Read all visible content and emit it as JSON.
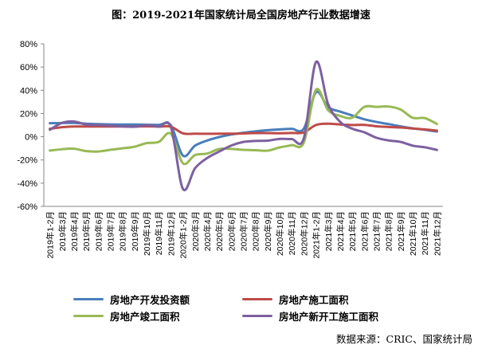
{
  "chart_data": {
    "type": "line",
    "title": "图：2019-2021年国家统计局全国房地产行业数据增速",
    "ylim": [
      -60,
      80
    ],
    "yticks": [
      "80%",
      "60%",
      "40%",
      "20%",
      "0%",
      "-20%",
      "-40%",
      "-60%"
    ],
    "grid": false,
    "legend_position": "bottom",
    "categories": [
      "2019年1-2月",
      "2019年3月",
      "2019年4月",
      "2019年5月",
      "2019年6月",
      "2019年7月",
      "2019年8月",
      "2019年9月",
      "2019年10月",
      "2019年11月",
      "2019年12月",
      "2020年1-2月",
      "2020年3月",
      "2020年4月",
      "2020年5月",
      "2020年6月",
      "2020年7月",
      "2020年8月",
      "2020年9月",
      "2020年10月",
      "2020年11月",
      "2020年12月",
      "2021年1-2月",
      "2021年3月",
      "2021年4月",
      "2021年5月",
      "2021年6月",
      "2021年7月",
      "2021年8月",
      "2021年9月",
      "2021年10月",
      "2021年11月",
      "2021年12月"
    ],
    "series": [
      {
        "name": "房地产开发投资额",
        "color": "#4a7ebb",
        "values": [
          11.6,
          11.8,
          11.9,
          11.2,
          10.9,
          10.6,
          10.5,
          10.5,
          10.3,
          10.2,
          9.9,
          -16.3,
          -7.7,
          -3.3,
          -0.3,
          1.9,
          3.4,
          4.6,
          5.6,
          6.3,
          6.8,
          7.0,
          38.3,
          25.6,
          21.6,
          18.3,
          15.0,
          12.7,
          10.9,
          8.9,
          7.2,
          6.0,
          4.4
        ]
      },
      {
        "name": "房地产施工面积",
        "color": "#be4b48",
        "values": [
          6.8,
          8.2,
          8.8,
          8.8,
          8.8,
          8.8,
          8.8,
          8.7,
          9.0,
          8.7,
          8.7,
          2.9,
          2.6,
          2.5,
          2.6,
          2.6,
          2.8,
          3.1,
          3.1,
          3.0,
          3.2,
          3.7,
          10.1,
          11.2,
          10.5,
          10.1,
          10.2,
          9.0,
          8.4,
          7.9,
          7.1,
          6.3,
          5.2
        ]
      },
      {
        "name": "房地产竣工面积",
        "color": "#98b954",
        "values": [
          -11.9,
          -10.8,
          -10.3,
          -12.4,
          -12.7,
          -11.3,
          -10.0,
          -8.6,
          -5.5,
          -4.5,
          2.6,
          -22.9,
          -15.8,
          -14.5,
          -10.6,
          -10.5,
          -11.3,
          -11.6,
          -12.0,
          -9.2,
          -7.3,
          -4.9,
          40.4,
          22.9,
          17.9,
          16.4,
          25.7,
          25.7,
          26.0,
          23.4,
          16.3,
          16.0,
          11.0
        ]
      },
      {
        "name": "房地产新开工施工面积",
        "color": "#7d60a0",
        "values": [
          6.0,
          11.9,
          13.1,
          10.5,
          10.1,
          9.5,
          8.9,
          8.6,
          10.0,
          8.6,
          8.5,
          -44.9,
          -27.2,
          -18.4,
          -12.8,
          -7.6,
          -4.5,
          -3.6,
          -3.4,
          -1.9,
          -2.0,
          -1.2,
          64.3,
          28.2,
          12.8,
          6.9,
          3.8,
          -0.9,
          -3.2,
          -4.5,
          -7.7,
          -9.1,
          -11.4
        ]
      }
    ]
  },
  "source": "数据来源：CRIC、国家统计局"
}
